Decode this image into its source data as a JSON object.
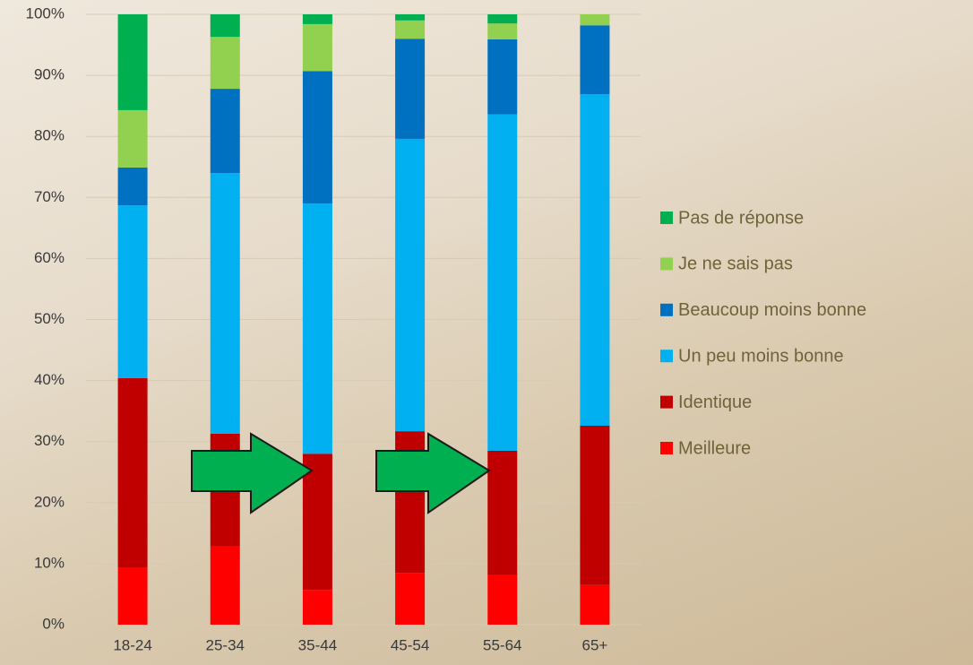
{
  "chart_data": {
    "type": "stacked-bar",
    "categories": [
      "18-24",
      "25-34",
      "35-44",
      "45-54",
      "55-64",
      "65+"
    ],
    "series": [
      {
        "name": "Meilleure",
        "color": "#ff0000",
        "values": [
          9.4,
          12.8,
          5.7,
          8.5,
          8.1,
          6.5
        ]
      },
      {
        "name": "Identique",
        "color": "#c00000",
        "values": [
          31.0,
          18.5,
          22.3,
          23.2,
          20.4,
          26.1
        ]
      },
      {
        "name": "Un peu moins bonne",
        "color": "#00b0f0",
        "values": [
          28.3,
          42.7,
          41.0,
          47.9,
          55.1,
          54.3
        ]
      },
      {
        "name": "Beaucoup moins bonne",
        "color": "#0070c0",
        "values": [
          6.2,
          13.8,
          21.7,
          16.4,
          12.3,
          11.3
        ]
      },
      {
        "name": "Je ne sais pas",
        "color": "#92d050",
        "values": [
          9.4,
          8.5,
          7.7,
          3.0,
          2.6,
          1.8
        ]
      },
      {
        "name": "Pas de réponse",
        "color": "#00b050",
        "values": [
          15.7,
          3.7,
          1.6,
          1.0,
          1.5,
          0
        ]
      }
    ],
    "ylim": [
      0,
      100
    ],
    "yticks": [
      {
        "value": 0,
        "label": "0%"
      },
      {
        "value": 10,
        "label": "10%"
      },
      {
        "value": 20,
        "label": "20%"
      },
      {
        "value": 30,
        "label": "30%"
      },
      {
        "value": 40,
        "label": "40%"
      },
      {
        "value": 50,
        "label": "50%"
      },
      {
        "value": 60,
        "label": "60%"
      },
      {
        "value": 70,
        "label": "70%"
      },
      {
        "value": 80,
        "label": "80%"
      },
      {
        "value": 90,
        "label": "90%"
      },
      {
        "value": 100,
        "label": "100%"
      }
    ],
    "grid": true,
    "legend": "right"
  }
}
